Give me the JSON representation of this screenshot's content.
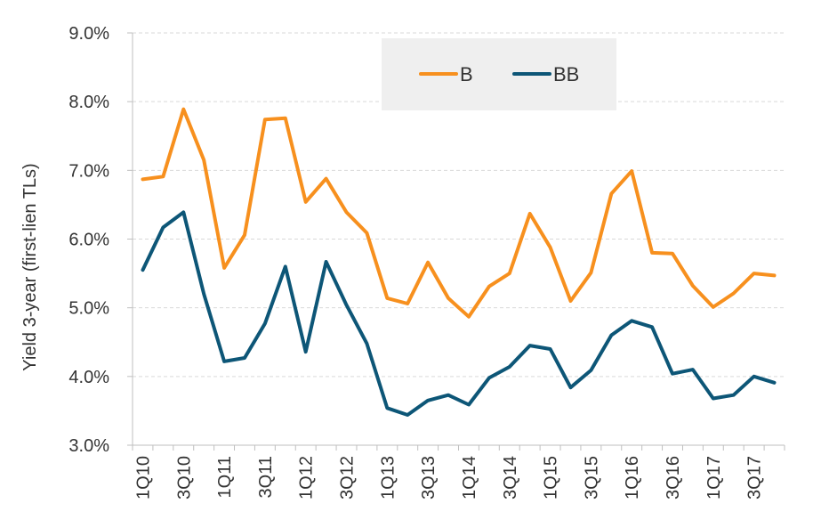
{
  "chart_data": {
    "type": "line",
    "title": "",
    "xlabel": "",
    "ylabel": "Yield 3-year (first-lien TLs)",
    "ylim": [
      3.0,
      9.0
    ],
    "y_ticks": [
      "3.0%",
      "4.0%",
      "5.0%",
      "6.0%",
      "7.0%",
      "8.0%",
      "9.0%"
    ],
    "y_tick_values": [
      3,
      4,
      5,
      6,
      7,
      8,
      9
    ],
    "grid": "horizontal dashed",
    "legend_position": "top-center",
    "x": [
      "1Q10",
      "2Q10",
      "3Q10",
      "4Q10",
      "1Q11",
      "2Q11",
      "3Q11",
      "4Q11",
      "1Q12",
      "2Q12",
      "3Q12",
      "4Q12",
      "1Q13",
      "2Q13",
      "3Q13",
      "4Q13",
      "1Q14",
      "2Q14",
      "3Q14",
      "4Q14",
      "1Q15",
      "2Q15",
      "3Q15",
      "4Q15",
      "1Q16",
      "2Q16",
      "3Q16",
      "4Q16",
      "1Q17",
      "2Q17",
      "3Q17",
      "4Q17"
    ],
    "x_tick_labels": [
      "1Q10",
      "",
      "3Q10",
      "",
      "1Q11",
      "",
      "3Q11",
      "",
      "1Q12",
      "",
      "3Q12",
      "",
      "1Q13",
      "",
      "3Q13",
      "",
      "1Q14",
      "",
      "3Q14",
      "",
      "1Q15",
      "",
      "3Q15",
      "",
      "1Q16",
      "",
      "3Q16",
      "",
      "1Q17",
      "",
      "3Q17",
      ""
    ],
    "series": [
      {
        "name": "B",
        "color": "#F7901E",
        "values": [
          6.87,
          6.91,
          7.89,
          7.15,
          5.58,
          6.06,
          7.74,
          7.76,
          6.54,
          6.88,
          6.39,
          6.09,
          5.14,
          5.06,
          5.66,
          5.14,
          4.87,
          5.31,
          5.5,
          6.37,
          5.88,
          5.1,
          5.51,
          6.66,
          6.99,
          5.8,
          5.79,
          5.32,
          5.01,
          5.21,
          5.5,
          5.47
        ]
      },
      {
        "name": "BB",
        "color": "#0D5677",
        "values": [
          5.55,
          6.17,
          6.39,
          5.2,
          4.22,
          4.27,
          4.77,
          5.6,
          4.36,
          5.67,
          5.04,
          4.48,
          3.54,
          3.44,
          3.65,
          3.73,
          3.59,
          3.98,
          4.14,
          4.45,
          4.4,
          3.84,
          4.09,
          4.6,
          4.81,
          4.72,
          4.04,
          4.1,
          3.68,
          3.73,
          4.0,
          3.91
        ]
      }
    ]
  }
}
